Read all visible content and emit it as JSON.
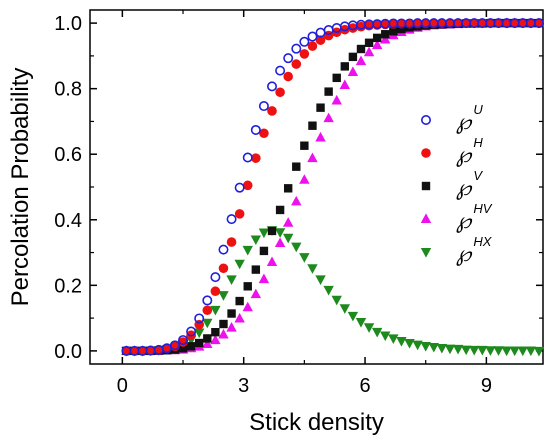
{
  "chart_data": {
    "type": "scatter",
    "title": "",
    "xlabel": "Stick density",
    "ylabel": "Percolation Probability",
    "xlim": [
      -0.8,
      10.4
    ],
    "ylim": [
      -0.04,
      1.04
    ],
    "xticks": [
      0,
      3,
      6,
      9
    ],
    "xtick_labels": [
      "0",
      "3",
      "6",
      "9"
    ],
    "yticks": [
      0.0,
      0.2,
      0.4,
      0.6,
      0.8,
      1.0
    ],
    "ytick_labels": [
      "0.0",
      "0.2",
      "0.4",
      "0.6",
      "0.8",
      "1.0"
    ],
    "grid": false,
    "legend_position": "right",
    "series": [
      {
        "name": "℘U",
        "label_base": "℘",
        "label_sup": "U",
        "marker": "circle-open",
        "color": "#1f1fdc",
        "x": [
          0.1,
          0.3,
          0.5,
          0.7,
          0.9,
          1.1,
          1.3,
          1.5,
          1.7,
          1.9,
          2.1,
          2.3,
          2.5,
          2.7,
          2.9,
          3.1,
          3.3,
          3.5,
          3.7,
          3.9,
          4.1,
          4.3,
          4.5,
          4.7,
          4.9,
          5.1,
          5.3,
          5.5,
          5.7,
          5.9,
          6.1,
          6.3,
          6.5,
          6.7,
          6.9,
          7.1,
          7.3,
          7.5,
          7.7,
          7.9,
          8.1,
          8.3,
          8.5,
          8.7,
          8.9,
          9.1,
          9.3,
          9.5,
          9.7,
          9.9,
          10.1,
          10.3
        ],
        "y": [
          0.0,
          0.0,
          0.0,
          0.001,
          0.003,
          0.008,
          0.017,
          0.033,
          0.059,
          0.099,
          0.154,
          0.225,
          0.309,
          0.402,
          0.498,
          0.59,
          0.674,
          0.747,
          0.807,
          0.855,
          0.893,
          0.922,
          0.943,
          0.959,
          0.971,
          0.979,
          0.985,
          0.99,
          0.993,
          0.995,
          0.996,
          0.997,
          0.998,
          0.999,
          0.999,
          0.999,
          1.0,
          1.0,
          1.0,
          1.0,
          1.0,
          1.0,
          1.0,
          1.0,
          1.0,
          1.0,
          1.0,
          1.0,
          1.0,
          1.0,
          1.0,
          1.0
        ]
      },
      {
        "name": "℘H",
        "label_base": "℘",
        "label_sup": "H",
        "marker": "circle-filled",
        "color": "#ee1111",
        "x": [
          0.1,
          0.3,
          0.5,
          0.7,
          0.9,
          1.1,
          1.3,
          1.5,
          1.7,
          1.9,
          2.1,
          2.3,
          2.5,
          2.7,
          2.9,
          3.1,
          3.3,
          3.5,
          3.7,
          3.9,
          4.1,
          4.3,
          4.5,
          4.7,
          4.9,
          5.1,
          5.3,
          5.5,
          5.7,
          5.9,
          6.1,
          6.3,
          6.5,
          6.7,
          6.9,
          7.1,
          7.3,
          7.5,
          7.7,
          7.9,
          8.1,
          8.3,
          8.5,
          8.7,
          8.9,
          9.1,
          9.3,
          9.5,
          9.7,
          9.9,
          10.1,
          10.3
        ],
        "y": [
          0.0,
          0.0,
          0.0,
          0.001,
          0.003,
          0.007,
          0.014,
          0.027,
          0.048,
          0.08,
          0.124,
          0.182,
          0.252,
          0.332,
          0.418,
          0.505,
          0.588,
          0.664,
          0.732,
          0.789,
          0.837,
          0.875,
          0.906,
          0.93,
          0.948,
          0.962,
          0.972,
          0.98,
          0.985,
          0.989,
          0.992,
          0.994,
          0.996,
          0.997,
          0.998,
          0.998,
          0.999,
          0.999,
          0.999,
          1.0,
          1.0,
          1.0,
          1.0,
          1.0,
          1.0,
          1.0,
          1.0,
          1.0,
          1.0,
          1.0,
          1.0,
          1.0
        ]
      },
      {
        "name": "℘V",
        "label_base": "℘",
        "label_sup": "V",
        "marker": "square-filled",
        "color": "#111111",
        "x": [
          0.1,
          0.3,
          0.5,
          0.7,
          0.9,
          1.1,
          1.3,
          1.5,
          1.7,
          1.9,
          2.1,
          2.3,
          2.5,
          2.7,
          2.9,
          3.1,
          3.3,
          3.5,
          3.7,
          3.9,
          4.1,
          4.3,
          4.5,
          4.7,
          4.9,
          5.1,
          5.3,
          5.5,
          5.7,
          5.9,
          6.1,
          6.3,
          6.5,
          6.7,
          6.9,
          7.1,
          7.3,
          7.5,
          7.7,
          7.9,
          8.1,
          8.3,
          8.5,
          8.7,
          8.9,
          9.1,
          9.3,
          9.5,
          9.7,
          9.9,
          10.1,
          10.3
        ],
        "y": [
          0.0,
          0.0,
          0.0,
          0.0,
          0.001,
          0.002,
          0.004,
          0.008,
          0.014,
          0.024,
          0.038,
          0.057,
          0.082,
          0.114,
          0.152,
          0.197,
          0.248,
          0.305,
          0.366,
          0.43,
          0.496,
          0.562,
          0.626,
          0.687,
          0.742,
          0.791,
          0.833,
          0.868,
          0.897,
          0.921,
          0.94,
          0.955,
          0.966,
          0.975,
          0.982,
          0.987,
          0.99,
          0.993,
          0.995,
          0.996,
          0.997,
          0.998,
          0.999,
          0.999,
          0.999,
          1.0,
          1.0,
          1.0,
          1.0,
          1.0,
          1.0,
          1.0
        ]
      },
      {
        "name": "℘HV",
        "label_base": "℘",
        "label_sup": "HV",
        "marker": "triangle-up",
        "color": "#ee11ee",
        "x": [
          0.1,
          0.3,
          0.5,
          0.7,
          0.9,
          1.1,
          1.3,
          1.5,
          1.7,
          1.9,
          2.1,
          2.3,
          2.5,
          2.7,
          2.9,
          3.1,
          3.3,
          3.5,
          3.7,
          3.9,
          4.1,
          4.3,
          4.5,
          4.7,
          4.9,
          5.1,
          5.3,
          5.5,
          5.7,
          5.9,
          6.1,
          6.3,
          6.5,
          6.7,
          6.9,
          7.1,
          7.3,
          7.5,
          7.7,
          7.9,
          8.1,
          8.3,
          8.5,
          8.7,
          8.9,
          9.1,
          9.3,
          9.5,
          9.7,
          9.9,
          10.1,
          10.3
        ],
        "y": [
          0.0,
          0.0,
          0.0,
          0.0,
          0.0,
          0.001,
          0.002,
          0.004,
          0.008,
          0.013,
          0.021,
          0.033,
          0.05,
          0.071,
          0.099,
          0.133,
          0.173,
          0.219,
          0.271,
          0.329,
          0.391,
          0.456,
          0.522,
          0.588,
          0.651,
          0.71,
          0.764,
          0.811,
          0.851,
          0.884,
          0.911,
          0.933,
          0.95,
          0.963,
          0.973,
          0.98,
          0.986,
          0.99,
          0.993,
          0.995,
          0.996,
          0.997,
          0.998,
          0.999,
          0.999,
          0.999,
          1.0,
          1.0,
          1.0,
          1.0,
          1.0,
          1.0
        ]
      },
      {
        "name": "℘HX",
        "label_base": "℘",
        "label_sup": "HX",
        "marker": "triangle-down",
        "color": "#1e8a1e",
        "x": [
          0.1,
          0.3,
          0.5,
          0.7,
          0.9,
          1.1,
          1.3,
          1.5,
          1.7,
          1.9,
          2.1,
          2.3,
          2.5,
          2.7,
          2.9,
          3.1,
          3.3,
          3.5,
          3.7,
          3.9,
          4.1,
          4.3,
          4.5,
          4.7,
          4.9,
          5.1,
          5.3,
          5.5,
          5.7,
          5.9,
          6.1,
          6.3,
          6.5,
          6.7,
          6.9,
          7.1,
          7.3,
          7.5,
          7.7,
          7.9,
          8.1,
          8.3,
          8.5,
          8.7,
          8.9,
          9.1,
          9.3,
          9.5,
          9.7,
          9.9,
          10.1,
          10.3
        ],
        "y": [
          0.0,
          0.0,
          0.0,
          0.001,
          0.002,
          0.005,
          0.01,
          0.019,
          0.034,
          0.056,
          0.086,
          0.125,
          0.17,
          0.218,
          0.266,
          0.308,
          0.34,
          0.361,
          0.368,
          0.362,
          0.345,
          0.318,
          0.286,
          0.252,
          0.218,
          0.186,
          0.156,
          0.13,
          0.107,
          0.088,
          0.072,
          0.058,
          0.047,
          0.038,
          0.03,
          0.024,
          0.019,
          0.015,
          0.012,
          0.009,
          0.007,
          0.006,
          0.004,
          0.003,
          0.003,
          0.002,
          0.002,
          0.001,
          0.001,
          0.001,
          0.001,
          0.0
        ]
      }
    ]
  }
}
